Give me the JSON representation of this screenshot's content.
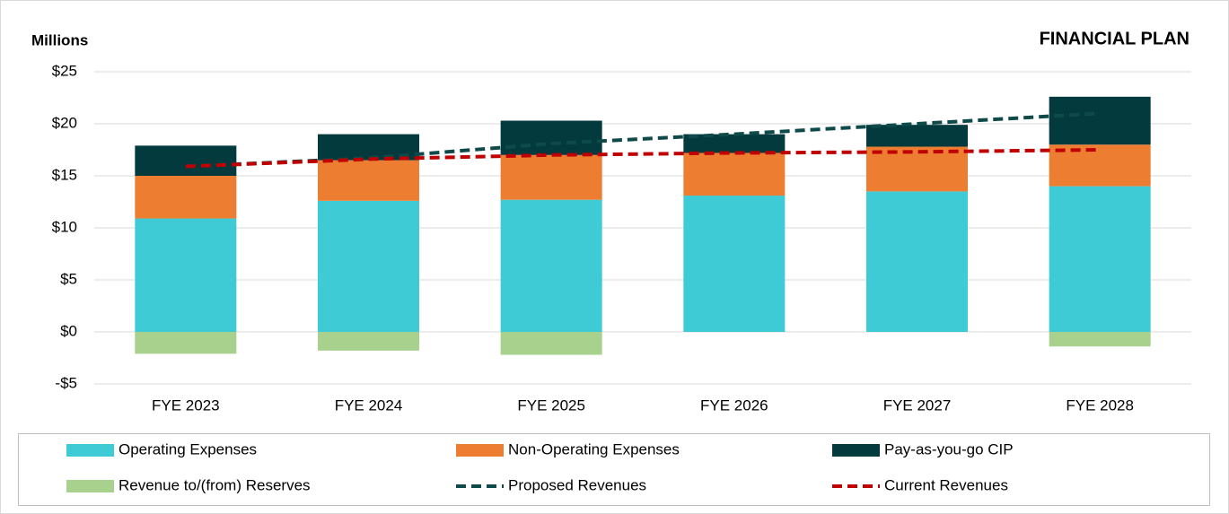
{
  "chart_data": {
    "type": "stacked_bar_line",
    "title": "FINANCIAL PLAN",
    "y_axis_label": "Millions",
    "categories": [
      "FYE 2023",
      "FYE 2024",
      "FYE 2025",
      "FYE 2026",
      "FYE 2027",
      "FYE 2028"
    ],
    "series": [
      {
        "name": "Operating Expenses",
        "color": "#3ecbd5",
        "kind": "bar",
        "values": [
          10.9,
          12.6,
          12.7,
          13.1,
          13.5,
          14.0
        ]
      },
      {
        "name": "Non-Operating Expenses",
        "color": "#ed7d31",
        "kind": "bar",
        "values": [
          4.1,
          3.9,
          4.3,
          4.1,
          4.3,
          4.0
        ]
      },
      {
        "name": "Pay-as-you-go CIP",
        "color": "#033a3e",
        "kind": "bar",
        "values": [
          2.9,
          2.5,
          3.3,
          1.8,
          2.1,
          4.6
        ]
      },
      {
        "name": "Revenue to/(from) Reserves",
        "color": "#a9d18e",
        "kind": "bar",
        "values": [
          -2.1,
          -1.8,
          -2.2,
          0,
          0,
          -1.4
        ]
      },
      {
        "name": "Proposed Revenues",
        "color": "#0e4a4a",
        "kind": "line",
        "values": [
          15.9,
          16.7,
          18.1,
          19.0,
          20.0,
          21.0
        ]
      },
      {
        "name": "Current Revenues",
        "color": "#c00000",
        "kind": "line",
        "values": [
          15.9,
          16.6,
          17.0,
          17.2,
          17.3,
          17.5
        ]
      }
    ],
    "ylim": [
      -5,
      25
    ],
    "yticks": [
      {
        "value": -5,
        "label": "-$5"
      },
      {
        "value": 0,
        "label": "$0"
      },
      {
        "value": 5,
        "label": "$5"
      },
      {
        "value": 10,
        "label": "$10"
      },
      {
        "value": 15,
        "label": "$15"
      },
      {
        "value": 20,
        "label": "$20"
      },
      {
        "value": 25,
        "label": "$25"
      }
    ],
    "grid": true,
    "legend": "bottom"
  }
}
